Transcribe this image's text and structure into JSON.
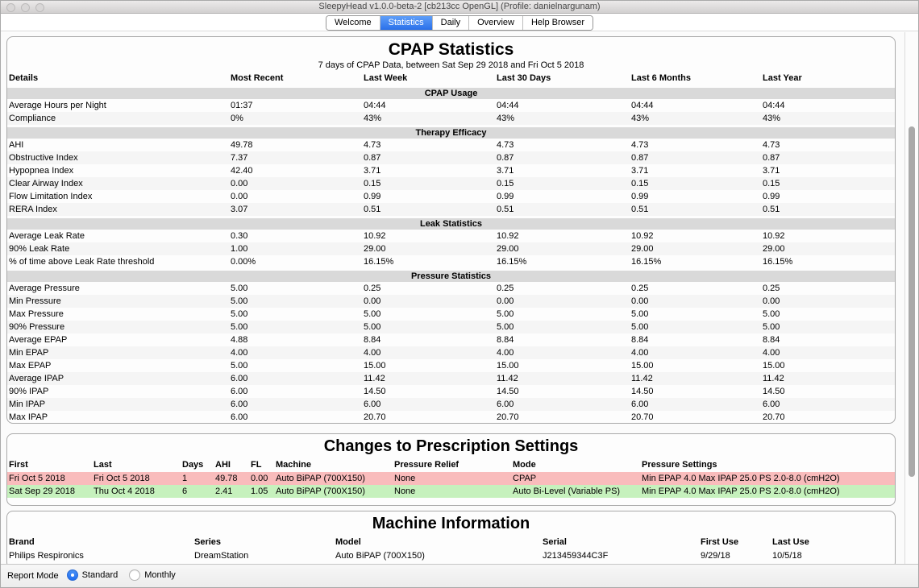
{
  "window": {
    "title": "SleepyHead v1.0.0-beta-2 [cb213cc OpenGL] (Profile: danielnargunam)"
  },
  "tabs": [
    {
      "label": "Welcome",
      "active": false
    },
    {
      "label": "Statistics",
      "active": true
    },
    {
      "label": "Daily",
      "active": false
    },
    {
      "label": "Overview",
      "active": false
    },
    {
      "label": "Help Browser",
      "active": false
    }
  ],
  "stats": {
    "title": "CPAP Statistics",
    "subtitle": "7 days of CPAP Data, between Sat Sep 29 2018 and Fri Oct 5 2018",
    "columns": [
      "Details",
      "Most Recent",
      "Last Week",
      "Last 30 Days",
      "Last 6 Months",
      "Last Year"
    ],
    "sections": [
      {
        "name": "CPAP Usage",
        "rows": [
          {
            "label": "Average Hours per Night",
            "values": [
              "01:37",
              "04:44",
              "04:44",
              "04:44",
              "04:44"
            ]
          },
          {
            "label": "Compliance",
            "values": [
              "0%",
              "43%",
              "43%",
              "43%",
              "43%"
            ]
          }
        ]
      },
      {
        "name": "Therapy Efficacy",
        "rows": [
          {
            "label": "AHI",
            "values": [
              "49.78",
              "4.73",
              "4.73",
              "4.73",
              "4.73"
            ]
          },
          {
            "label": "Obstructive Index",
            "values": [
              "7.37",
              "0.87",
              "0.87",
              "0.87",
              "0.87"
            ]
          },
          {
            "label": "Hypopnea Index",
            "values": [
              "42.40",
              "3.71",
              "3.71",
              "3.71",
              "3.71"
            ]
          },
          {
            "label": "Clear Airway Index",
            "values": [
              "0.00",
              "0.15",
              "0.15",
              "0.15",
              "0.15"
            ]
          },
          {
            "label": "Flow Limitation Index",
            "values": [
              "0.00",
              "0.99",
              "0.99",
              "0.99",
              "0.99"
            ]
          },
          {
            "label": "RERA Index",
            "values": [
              "3.07",
              "0.51",
              "0.51",
              "0.51",
              "0.51"
            ]
          }
        ]
      },
      {
        "name": "Leak Statistics",
        "rows": [
          {
            "label": "Average Leak Rate",
            "values": [
              "0.30",
              "10.92",
              "10.92",
              "10.92",
              "10.92"
            ]
          },
          {
            "label": "90% Leak Rate",
            "values": [
              "1.00",
              "29.00",
              "29.00",
              "29.00",
              "29.00"
            ]
          },
          {
            "label": "% of time above Leak Rate threshold",
            "values": [
              "0.00%",
              "16.15%",
              "16.15%",
              "16.15%",
              "16.15%"
            ]
          }
        ]
      },
      {
        "name": "Pressure Statistics",
        "rows": [
          {
            "label": "Average Pressure",
            "values": [
              "5.00",
              "0.25",
              "0.25",
              "0.25",
              "0.25"
            ]
          },
          {
            "label": "Min Pressure",
            "values": [
              "5.00",
              "0.00",
              "0.00",
              "0.00",
              "0.00"
            ]
          },
          {
            "label": "Max Pressure",
            "values": [
              "5.00",
              "5.00",
              "5.00",
              "5.00",
              "5.00"
            ]
          },
          {
            "label": "90% Pressure",
            "values": [
              "5.00",
              "5.00",
              "5.00",
              "5.00",
              "5.00"
            ]
          },
          {
            "label": "Average EPAP",
            "values": [
              "4.88",
              "8.84",
              "8.84",
              "8.84",
              "8.84"
            ]
          },
          {
            "label": "Min EPAP",
            "values": [
              "4.00",
              "4.00",
              "4.00",
              "4.00",
              "4.00"
            ]
          },
          {
            "label": "Max EPAP",
            "values": [
              "5.00",
              "15.00",
              "15.00",
              "15.00",
              "15.00"
            ]
          },
          {
            "label": "Average IPAP",
            "values": [
              "6.00",
              "11.42",
              "11.42",
              "11.42",
              "11.42"
            ]
          },
          {
            "label": "90% IPAP",
            "values": [
              "6.00",
              "14.50",
              "14.50",
              "14.50",
              "14.50"
            ]
          },
          {
            "label": "Min IPAP",
            "values": [
              "6.00",
              "6.00",
              "6.00",
              "6.00",
              "6.00"
            ]
          },
          {
            "label": "Max IPAP",
            "values": [
              "6.00",
              "20.70",
              "20.70",
              "20.70",
              "20.70"
            ]
          }
        ]
      }
    ]
  },
  "prescription": {
    "title": "Changes to Prescription Settings",
    "columns": [
      "First",
      "Last",
      "Days",
      "AHI",
      "FL",
      "Machine",
      "Pressure Relief",
      "Mode",
      "Pressure Settings"
    ],
    "rows": [
      {
        "color": "#f9bcbc",
        "values": [
          "Fri Oct 5 2018",
          "Fri Oct 5 2018",
          "1",
          "49.78",
          "0.00",
          "Auto BiPAP (700X150)",
          "None",
          "CPAP",
          "Min EPAP 4.0 Max IPAP 25.0 PS 2.0-8.0 (cmH2O)"
        ]
      },
      {
        "color": "#c6f1bd",
        "values": [
          "Sat Sep 29 2018",
          "Thu Oct 4 2018",
          "6",
          "2.41",
          "1.05",
          "Auto BiPAP (700X150)",
          "None",
          "Auto Bi-Level (Variable PS)",
          "Min EPAP 4.0 Max IPAP 25.0 PS 2.0-8.0 (cmH2O)"
        ]
      }
    ]
  },
  "machine": {
    "title": "Machine Information",
    "columns": [
      "Brand",
      "Series",
      "Model",
      "Serial",
      "First Use",
      "Last Use"
    ],
    "rows": [
      [
        "Philips Respironics",
        "DreamStation",
        "Auto BiPAP (700X150)",
        "J213459344C3F",
        "9/29/18",
        "10/5/18"
      ]
    ]
  },
  "report_mode": {
    "label": "Report Mode",
    "options": [
      {
        "label": "Standard",
        "selected": true
      },
      {
        "label": "Monthly",
        "selected": false
      }
    ]
  },
  "colors": {
    "accent": "#2f7cf6",
    "section_band": "#d9d9d9",
    "row_alt": "#f5f5f5",
    "rx_red": "#f9bcbc",
    "rx_green": "#c6f1bd"
  }
}
